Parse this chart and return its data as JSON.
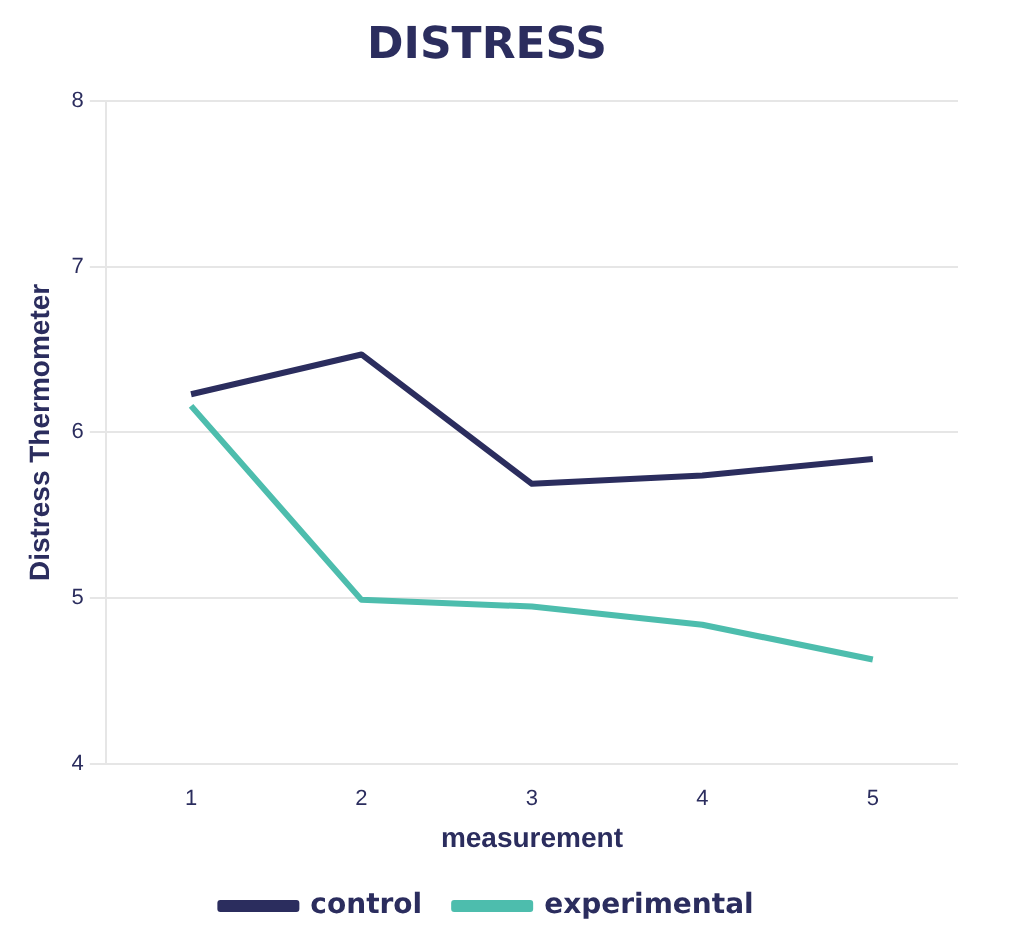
{
  "chart_data": {
    "type": "line",
    "title": "DISTRESS",
    "xlabel": "measurement",
    "ylabel": "Distress Thermometer",
    "categories": [
      "1",
      "2",
      "3",
      "4",
      "5"
    ],
    "series": [
      {
        "name": "control",
        "color": "#2b2d5e",
        "values": [
          6.23,
          6.47,
          5.69,
          5.74,
          5.84
        ]
      },
      {
        "name": "experimental",
        "color": "#4dbdad",
        "values": [
          6.16,
          4.99,
          4.95,
          4.84,
          4.63
        ]
      }
    ],
    "ylim": [
      4,
      8
    ],
    "yticks": [
      4,
      5,
      6,
      7,
      8
    ],
    "grid": "y",
    "legend": "bottom",
    "marker": "none",
    "line_style": "solid"
  }
}
